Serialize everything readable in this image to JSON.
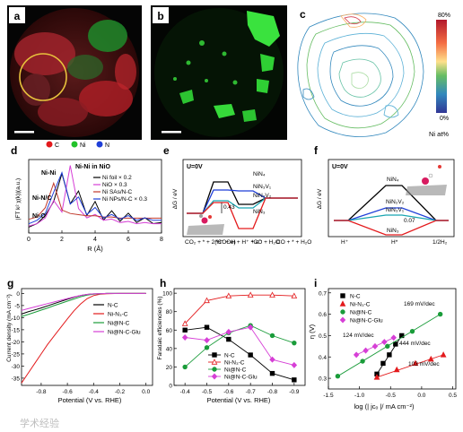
{
  "panels": {
    "a": {
      "label": "a",
      "legend": [
        {
          "sym": "C",
          "color": "#e31a1c"
        },
        {
          "sym": "Ni",
          "color": "#22c22a"
        },
        {
          "sym": "N",
          "color": "#1f3fd8"
        }
      ]
    },
    "b": {
      "label": "b"
    },
    "c": {
      "label": "c",
      "colorbar_top": "80%",
      "colorbar_bottom": "0%",
      "colorbar_title": "Ni at%"
    },
    "d": {
      "label": "d",
      "ylabel": "|FT k² χ(k)|(a.u.)",
      "xlabel": "R (Å)",
      "annotations": [
        "Ni-Ni in NiO",
        "Ni-Ni",
        "Ni-N/C",
        "Ni-O"
      ],
      "legend": [
        "Ni foil × 0.2",
        "NiO × 0.3",
        "Ni SAs/N-C",
        "Ni NPs/N-C × 0.3"
      ],
      "legend_colors": [
        "#000000",
        "#d63fd6",
        "#c0392b",
        "#1f3fd8"
      ],
      "xticks": [
        "0",
        "2",
        "4",
        "6",
        "8"
      ]
    },
    "e": {
      "label": "e",
      "u_label": "U=0V",
      "ylabel": "ΔG / eV",
      "levels": [
        "NiN₄",
        "NiN₃V₁",
        "NiN₂V₂",
        "NiN₃"
      ],
      "level_colors": [
        "#000000",
        "#18a5b0",
        "#1f3fd8",
        "#e31a1c"
      ],
      "value_label": "0.43",
      "xticks": [
        "CO₂ + * + 2(H⁺ + e)",
        "*COOH + H⁺ + e⁻",
        "*CO + H₂O",
        "CO + * + H₂O"
      ]
    },
    "f": {
      "label": "f",
      "u_label": "U=0V",
      "ylabel": "ΔG / eV",
      "levels": [
        "NiN₄",
        "NiN₃V₁",
        "NiN₂V₂",
        "NiN₃"
      ],
      "level_colors": [
        "#000000",
        "#18a5b0",
        "#1f3fd8",
        "#e31a1c"
      ],
      "value_label": "0.07",
      "xticks": [
        "H⁺",
        "H*",
        "1/2H₂"
      ]
    },
    "g": {
      "label": "g",
      "ylabel": "Current density (mA cm⁻²)",
      "xlabel": "Potential (V vs. RHE)"
    },
    "h": {
      "label": "h",
      "ylabel": "Faradaic efficiencies (%)",
      "xlabel": "Potential (V vs. RHE)"
    },
    "i": {
      "label": "i",
      "ylabel": "η (V)",
      "xlabel": "log (| jᴄₒ |/ mA cm⁻²)",
      "slopes": [
        {
          "text": "169 mV/dec",
          "color": "#1a9c3a"
        },
        {
          "text": "124 mV/dec",
          "color": "#d63fd6"
        },
        {
          "text": "444 mV/dec",
          "color": "#000000"
        },
        {
          "text": "103 mV/dec",
          "color": "#e31a1c"
        }
      ]
    }
  },
  "series_legend": [
    {
      "name": "N-C",
      "color": "#000000",
      "marker": "square"
    },
    {
      "name": "Ni-N₃-C",
      "color": "#e31a1c",
      "marker": "triangle"
    },
    {
      "name": "Ni@N-C",
      "color": "#1a9c3a",
      "marker": "circle"
    },
    {
      "name": "Ni@N-C-Glu",
      "color": "#d63fd6",
      "marker": "diamond"
    }
  ],
  "chart_data": [
    {
      "type": "line",
      "panel": "d",
      "x": [
        0.0,
        0.5,
        1.0,
        1.5,
        2.0,
        2.5,
        3.0,
        3.5,
        4.0,
        4.5,
        5.0,
        5.5,
        6.0,
        6.5,
        7.0,
        7.5,
        8.0
      ],
      "xlim": [
        0,
        8
      ],
      "series": [
        {
          "name": "Ni foil × 0.2",
          "values": [
            0.2,
            0.5,
            1.2,
            2.4,
            4.8,
            2.2,
            3.3,
            1.2,
            2.4,
            0.8,
            1.6,
            0.7,
            1.4,
            0.6,
            1.0,
            0.5,
            0.6
          ]
        },
        {
          "name": "NiO × 0.3",
          "values": [
            0.1,
            0.3,
            0.8,
            2.3,
            1.3,
            5.3,
            1.6,
            0.8,
            1.1,
            0.6,
            0.7,
            0.4,
            0.5,
            0.3,
            0.4,
            0.3,
            0.3
          ]
        },
        {
          "name": "Ni SAs/N-C",
          "values": [
            0.1,
            0.3,
            1.1,
            3.2,
            0.9,
            0.6,
            0.5,
            0.4,
            0.4,
            0.3,
            0.3,
            0.2,
            0.2,
            0.2,
            0.2,
            0.2,
            0.2
          ]
        },
        {
          "name": "Ni NPs/N-C × 0.3",
          "values": [
            0.1,
            0.4,
            1.0,
            2.8,
            4.5,
            1.8,
            2.4,
            0.9,
            1.5,
            0.6,
            0.9,
            0.5,
            0.8,
            0.4,
            0.6,
            0.4,
            0.4
          ]
        }
      ]
    },
    {
      "type": "line",
      "panel": "g",
      "xlabel": "Potential (V vs. RHE)",
      "ylabel": "Current density (mA cm⁻²)",
      "xticks": [
        -0.8,
        -0.6,
        -0.4,
        -0.2,
        0.0
      ],
      "yticks": [
        0,
        -5,
        -10,
        -15,
        -20,
        -25,
        -30,
        -35
      ],
      "xlim": [
        -0.95,
        0.05
      ],
      "ylim": [
        -38,
        2
      ],
      "x": [
        -0.95,
        -0.9,
        -0.85,
        -0.8,
        -0.75,
        -0.7,
        -0.65,
        -0.6,
        -0.55,
        -0.5,
        -0.45,
        -0.4,
        -0.35,
        -0.3,
        -0.2,
        -0.1,
        0.0
      ],
      "series": [
        {
          "name": "N-C",
          "values": [
            -8.5,
            -7.6,
            -6.8,
            -6.0,
            -5.1,
            -4.2,
            -3.3,
            -2.4,
            -1.6,
            -0.9,
            -0.4,
            -0.2,
            -0.1,
            0,
            0,
            0,
            0
          ]
        },
        {
          "name": "Ni-N₃-C",
          "values": [
            -37,
            -33,
            -29,
            -25,
            -21,
            -17.5,
            -14,
            -10.5,
            -7.2,
            -4.4,
            -2.2,
            -0.9,
            -0.3,
            -0.1,
            0,
            0,
            0
          ]
        },
        {
          "name": "Ni@N-C",
          "values": [
            -9.5,
            -8.7,
            -7.8,
            -6.9,
            -6.0,
            -5.0,
            -4.1,
            -3.2,
            -2.3,
            -1.4,
            -0.7,
            -0.3,
            -0.1,
            0,
            0,
            0,
            0
          ]
        },
        {
          "name": "Ni@N-C-Glu",
          "values": [
            -7.0,
            -6.3,
            -5.6,
            -4.9,
            -4.2,
            -3.5,
            -2.8,
            -2.1,
            -1.4,
            -0.8,
            -0.4,
            -0.2,
            -0.1,
            0,
            0,
            0,
            0
          ]
        }
      ]
    },
    {
      "type": "line",
      "panel": "h",
      "xlabel": "Potential (V vs. RHE)",
      "ylabel": "Faradaic efficiencies (%)",
      "xticks": [
        -0.4,
        -0.5,
        -0.6,
        -0.7,
        -0.8,
        -0.9
      ],
      "yticks": [
        0,
        20,
        40,
        60,
        80,
        100
      ],
      "xlim": [
        -0.35,
        -0.95
      ],
      "ylim": [
        0,
        105
      ],
      "x": [
        -0.4,
        -0.5,
        -0.6,
        -0.7,
        -0.8,
        -0.9
      ],
      "series": [
        {
          "name": "N-C",
          "values": [
            60,
            63,
            50,
            33,
            13,
            6
          ]
        },
        {
          "name": "Ni-N₃-C",
          "values": [
            67,
            92,
            97,
            98,
            98,
            97
          ]
        },
        {
          "name": "Ni@N-C",
          "values": [
            20,
            41,
            57,
            65,
            54,
            46
          ]
        },
        {
          "name": "Ni@N-C-Glu",
          "values": [
            52,
            49,
            58,
            63,
            28,
            22
          ]
        }
      ]
    },
    {
      "type": "scatter",
      "panel": "i",
      "xlabel": "log (| jᴄₒ |/ mA cm⁻²)",
      "ylabel": "η (V)",
      "xticks": [
        -1.5,
        -1.0,
        -0.5,
        0.0,
        0.5
      ],
      "yticks": [
        0.3,
        0.4,
        0.5,
        0.6,
        0.7
      ],
      "xlim": [
        -1.5,
        0.55
      ],
      "ylim": [
        0.25,
        0.72
      ],
      "series": [
        {
          "name": "N-C",
          "x": [
            -0.72,
            -0.62,
            -0.52,
            -0.42,
            -0.32
          ],
          "values": [
            0.32,
            0.37,
            0.41,
            0.46,
            0.5
          ]
        },
        {
          "name": "Ni-N₃-C",
          "x": [
            -0.72,
            -0.4,
            -0.1,
            0.15,
            0.35
          ],
          "values": [
            0.305,
            0.34,
            0.37,
            0.39,
            0.41
          ]
        },
        {
          "name": "Ni@N-C",
          "x": [
            -1.35,
            -0.95,
            -0.55,
            -0.15,
            0.3
          ],
          "values": [
            0.31,
            0.38,
            0.45,
            0.52,
            0.6
          ]
        },
        {
          "name": "Ni@N-C-Glu",
          "x": [
            -1.05,
            -0.9,
            -0.75,
            -0.6,
            -0.45
          ],
          "values": [
            0.41,
            0.43,
            0.45,
            0.47,
            0.49
          ]
        }
      ]
    }
  ],
  "watermark": "学术经验"
}
